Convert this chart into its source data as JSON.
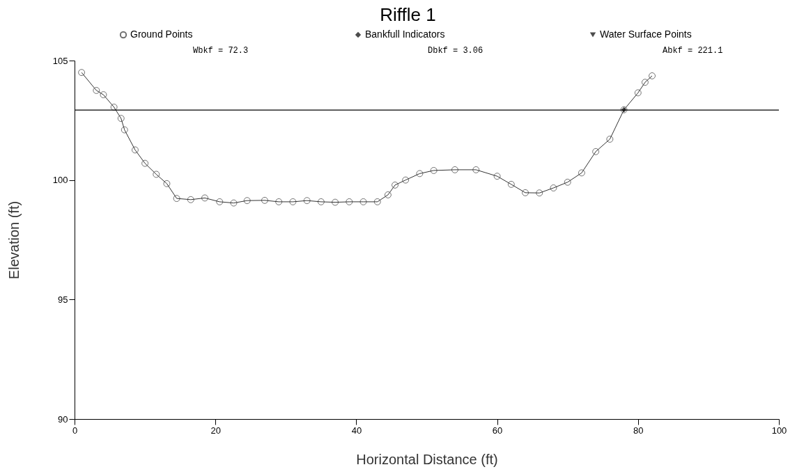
{
  "chart_data": {
    "type": "line",
    "title": "Riffle 1",
    "xlabel": "Horizontal Distance (ft)",
    "ylabel": "Elevation (ft)",
    "xlim": [
      0,
      100
    ],
    "xticks": [
      0,
      20,
      40,
      60,
      80,
      100
    ],
    "ylim": [
      90,
      105
    ],
    "yticks": [
      90,
      95,
      100,
      105
    ],
    "grid": false,
    "legend": "top",
    "series": [
      {
        "name": "Ground Points",
        "marker": "circle",
        "color": "#333333",
        "x": [
          1.0,
          3.1,
          4.1,
          5.6,
          6.6,
          7.1,
          8.6,
          10.0,
          11.6,
          13.1,
          14.5,
          16.5,
          18.5,
          20.6,
          22.6,
          24.5,
          27.0,
          29.0,
          31.0,
          33.0,
          35.0,
          37.0,
          39.0,
          41.0,
          43.0,
          44.5,
          45.5,
          47.0,
          49.0,
          51.0,
          54.0,
          57.0,
          60.0,
          62.0,
          64.0,
          66.0,
          68.0,
          70.0,
          72.0,
          74.0,
          76.0,
          78.0,
          80.0,
          81.0,
          82.0
        ],
        "values": [
          104.5,
          103.75,
          103.57,
          103.05,
          102.58,
          102.1,
          101.26,
          100.7,
          100.24,
          99.85,
          99.23,
          99.18,
          99.25,
          99.09,
          99.04,
          99.14,
          99.15,
          99.09,
          99.09,
          99.14,
          99.09,
          99.07,
          99.09,
          99.09,
          99.09,
          99.38,
          99.79,
          100.0,
          100.27,
          100.4,
          100.43,
          100.43,
          100.16,
          99.82,
          99.47,
          99.46,
          99.67,
          99.91,
          100.3,
          101.19,
          101.71,
          102.94,
          103.65,
          104.09,
          104.36
        ]
      },
      {
        "name": "Bankfull Indicators",
        "type": "scatter",
        "marker": "diamond",
        "color": "#000000",
        "x": [
          78.0
        ],
        "values": [
          102.94
        ]
      },
      {
        "name": "Water Surface Points",
        "type": "scatter",
        "marker": "triangle",
        "color": "#000000"
      }
    ],
    "ref_lines": [
      {
        "axis": "y",
        "value": 102.93,
        "color": "#000000"
      }
    ],
    "annotations": [
      "Wbkf = 72.3",
      "Dbkf = 3.06",
      "Abkf = 221.1"
    ]
  }
}
